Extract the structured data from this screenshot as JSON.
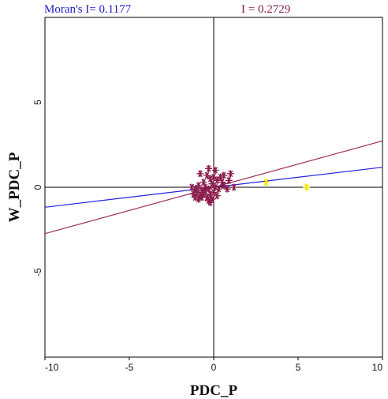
{
  "header": {
    "left": "Moran's I= 0.1177",
    "right": "I = 0.2729"
  },
  "chart_data": {
    "type": "scatter",
    "title": "",
    "xlabel": "PDC_P",
    "ylabel": "W_PDC_P",
    "xlim": [
      -10,
      10
    ],
    "ylim": [
      -10,
      10
    ],
    "x_ticks": [
      -10,
      -5,
      0,
      5,
      10
    ],
    "y_ticks": [
      -5,
      0,
      5
    ],
    "tick_labels_x": [
      "-10",
      "-5",
      "0",
      "5",
      "10"
    ],
    "tick_labels_y": [
      "-5",
      "0",
      "5"
    ],
    "grid": false,
    "colors": {
      "points": "#8a1a4a",
      "highlight": "#f2e600",
      "line_blue": "#2424e0",
      "line_red": "#a0305a",
      "axes": "#000000"
    },
    "series": [
      {
        "marker": "asterisk",
        "points": [
          [
            -0.8,
            0.8
          ],
          [
            0.1,
            1.0
          ],
          [
            -0.3,
            1.1
          ],
          [
            0.6,
            0.7
          ],
          [
            1.0,
            0.8
          ],
          [
            0.2,
            0.4
          ],
          [
            0.5,
            0.3
          ],
          [
            0.9,
            0.4
          ],
          [
            -0.6,
            0.3
          ],
          [
            -0.2,
            0.5
          ],
          [
            -1.3,
            0.0
          ],
          [
            -1.1,
            -0.1
          ],
          [
            -0.9,
            0.1
          ],
          [
            -0.7,
            -0.2
          ],
          [
            -0.5,
            0.0
          ],
          [
            -0.3,
            -0.1
          ],
          [
            -0.1,
            0.2
          ],
          [
            0.1,
            0.0
          ],
          [
            0.3,
            -0.1
          ],
          [
            0.6,
            0.1
          ],
          [
            1.2,
            0.0
          ],
          [
            -1.2,
            -0.4
          ],
          [
            -1.0,
            -0.3
          ],
          [
            -0.8,
            -0.5
          ],
          [
            -0.6,
            -0.4
          ],
          [
            -0.4,
            -0.6
          ],
          [
            -0.2,
            -0.4
          ],
          [
            0.0,
            -0.3
          ],
          [
            0.2,
            -0.5
          ],
          [
            -1.1,
            -0.6
          ],
          [
            -0.9,
            -0.7
          ],
          [
            -0.7,
            -0.6
          ],
          [
            -0.3,
            -0.8
          ],
          [
            -0.1,
            -0.7
          ],
          [
            -0.2,
            -0.9
          ],
          [
            -0.5,
            -0.2
          ],
          [
            0.4,
            0.6
          ],
          [
            -0.4,
            0.7
          ],
          [
            0.0,
            0.6
          ],
          [
            0.8,
            -0.1
          ]
        ]
      },
      {
        "marker": "asterisk-highlight",
        "points": [
          [
            3.1,
            0.3
          ],
          [
            5.5,
            0.0
          ]
        ]
      }
    ],
    "lines": [
      {
        "name": "Moran's I= 0.1177",
        "slope": 0.1177,
        "intercept": 0.0,
        "color": "blue"
      },
      {
        "name": "I = 0.2729",
        "slope": 0.2729,
        "intercept": 0.0,
        "color": "red"
      }
    ]
  }
}
